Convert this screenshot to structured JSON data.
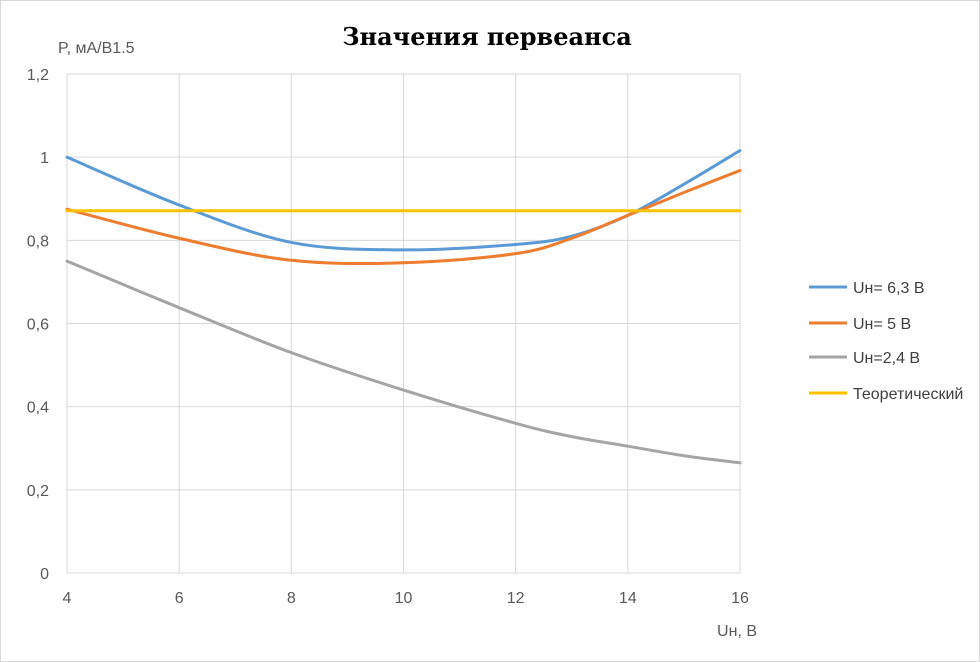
{
  "chart_data": {
    "type": "line",
    "title": "Значения первеанса",
    "ylabel": "P, мА/В1.5",
    "xlabel": "Uн, В",
    "xlim": [
      4,
      16
    ],
    "ylim": [
      0,
      1.2
    ],
    "x_ticks": [
      4,
      6,
      8,
      10,
      12,
      14,
      16
    ],
    "y_ticks": [
      0,
      0.2,
      0.4,
      0.6,
      0.8,
      1,
      1.2
    ],
    "x_tick_labels": [
      "4",
      "6",
      "8",
      "10",
      "12",
      "14",
      "16"
    ],
    "y_tick_labels": [
      "0",
      "0,2",
      "0,4",
      "0,6",
      "0,8",
      "1",
      "1,2"
    ],
    "grid": true,
    "smooth": true,
    "legend_position": "right",
    "series": [
      {
        "name": "Uн= 6,3 В",
        "color": "#5b9bd5",
        "x": [
          4,
          6,
          8,
          10,
          12,
          13,
          14,
          15,
          16
        ],
        "y": [
          1.0,
          0.885,
          0.795,
          0.777,
          0.79,
          0.81,
          0.86,
          0.935,
          1.016
        ]
      },
      {
        "name": "Uн= 5 В",
        "color": "#ed7d31",
        "x": [
          4,
          6,
          8,
          10,
          12,
          13,
          14,
          15,
          16
        ],
        "y": [
          0.875,
          0.805,
          0.752,
          0.746,
          0.768,
          0.805,
          0.86,
          0.915,
          0.968
        ]
      },
      {
        "name": "Uн=2,4 В",
        "color": "#a5a5a5",
        "x": [
          4,
          6,
          8,
          10,
          12,
          13,
          14,
          15,
          16
        ],
        "y": [
          0.75,
          0.638,
          0.53,
          0.44,
          0.36,
          0.328,
          0.305,
          0.282,
          0.265
        ]
      },
      {
        "name": "Теоретический",
        "color": "#ffc000",
        "x": [
          4,
          16
        ],
        "y": [
          0.871,
          0.871
        ]
      }
    ]
  }
}
